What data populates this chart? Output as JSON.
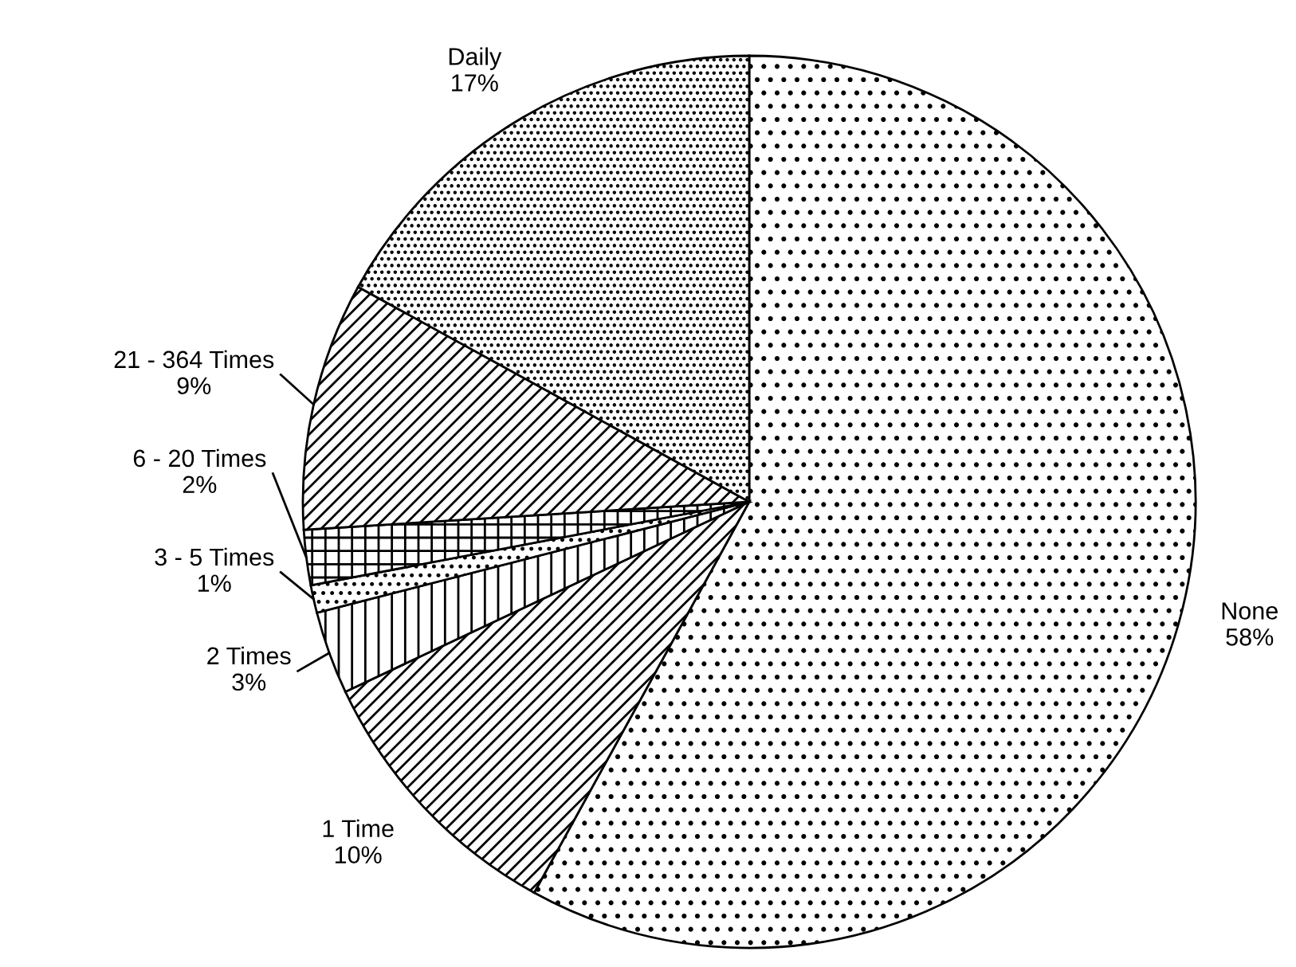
{
  "chart_data": {
    "type": "pie",
    "categories": [
      "None",
      "1 Time",
      "2 Times",
      "3 - 5 Times",
      "6 - 20 Times",
      "21 - 364 Times",
      "Daily"
    ],
    "values": [
      58,
      10,
      3,
      1,
      2,
      9,
      17
    ],
    "value_labels": [
      "58%",
      "10%",
      "3%",
      "1%",
      "2%",
      "9%",
      "17%"
    ],
    "legend": false
  }
}
